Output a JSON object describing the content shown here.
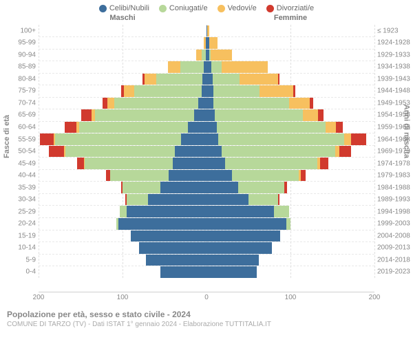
{
  "legend": [
    {
      "label": "Celibi/Nubili",
      "color": "#3d6e9c"
    },
    {
      "label": "Coniugati/e",
      "color": "#b7d89a"
    },
    {
      "label": "Vedovi/e",
      "color": "#f7c05f"
    },
    {
      "label": "Divorziati/e",
      "color": "#d13a2e"
    }
  ],
  "column_headers": {
    "left": "Maschi",
    "right": "Femmine"
  },
  "y_axis_title_left": "Fasce di età",
  "y_axis_title_right": "Anni di nascita",
  "x_axis": {
    "max": 200,
    "ticks": [
      200,
      100,
      0,
      100,
      200
    ]
  },
  "footer": {
    "title": "Popolazione per età, sesso e stato civile - 2024",
    "subtitle": "COMUNE DI TARZO (TV) - Dati ISTAT 1° gennaio 2024 - Elaborazione TUTTITALIA.IT"
  },
  "colors": {
    "grid": "#e0e0e0",
    "center_line": "#cfcfcf",
    "row_divider": "#e8e8e8",
    "axis_text": "#888888",
    "background": "#ffffff"
  },
  "rows": [
    {
      "age": "100+",
      "birth": "≤ 1923",
      "m": {
        "c": 0,
        "co": 0,
        "v": 0,
        "d": 0
      },
      "f": {
        "c": 1,
        "co": 0,
        "v": 2,
        "d": 0
      }
    },
    {
      "age": "95-99",
      "birth": "1924-1928",
      "m": {
        "c": 1,
        "co": 0,
        "v": 2,
        "d": 0
      },
      "f": {
        "c": 3,
        "co": 0,
        "v": 10,
        "d": 0
      }
    },
    {
      "age": "90-94",
      "birth": "1929-1933",
      "m": {
        "c": 1,
        "co": 5,
        "v": 6,
        "d": 0
      },
      "f": {
        "c": 3,
        "co": 2,
        "v": 25,
        "d": 0
      }
    },
    {
      "age": "85-89",
      "birth": "1934-1938",
      "m": {
        "c": 3,
        "co": 28,
        "v": 15,
        "d": 0
      },
      "f": {
        "c": 6,
        "co": 12,
        "v": 55,
        "d": 0
      }
    },
    {
      "age": "80-84",
      "birth": "1939-1943",
      "m": {
        "c": 5,
        "co": 55,
        "v": 14,
        "d": 2
      },
      "f": {
        "c": 7,
        "co": 32,
        "v": 46,
        "d": 2
      }
    },
    {
      "age": "75-79",
      "birth": "1944-1948",
      "m": {
        "c": 6,
        "co": 80,
        "v": 12,
        "d": 4
      },
      "f": {
        "c": 8,
        "co": 55,
        "v": 40,
        "d": 3
      }
    },
    {
      "age": "70-74",
      "birth": "1949-1953",
      "m": {
        "c": 10,
        "co": 100,
        "v": 8,
        "d": 6
      },
      "f": {
        "c": 8,
        "co": 90,
        "v": 25,
        "d": 4
      }
    },
    {
      "age": "65-69",
      "birth": "1954-1958",
      "m": {
        "c": 15,
        "co": 118,
        "v": 4,
        "d": 12
      },
      "f": {
        "c": 10,
        "co": 105,
        "v": 18,
        "d": 6
      }
    },
    {
      "age": "60-64",
      "birth": "1959-1963",
      "m": {
        "c": 22,
        "co": 130,
        "v": 3,
        "d": 14
      },
      "f": {
        "c": 12,
        "co": 130,
        "v": 12,
        "d": 8
      }
    },
    {
      "age": "55-59",
      "birth": "1964-1968",
      "m": {
        "c": 30,
        "co": 150,
        "v": 2,
        "d": 16
      },
      "f": {
        "c": 14,
        "co": 150,
        "v": 8,
        "d": 18
      }
    },
    {
      "age": "50-54",
      "birth": "1969-1973",
      "m": {
        "c": 38,
        "co": 130,
        "v": 2,
        "d": 18
      },
      "f": {
        "c": 18,
        "co": 135,
        "v": 5,
        "d": 14
      }
    },
    {
      "age": "45-49",
      "birth": "1974-1978",
      "m": {
        "c": 40,
        "co": 105,
        "v": 1,
        "d": 8
      },
      "f": {
        "c": 22,
        "co": 110,
        "v": 3,
        "d": 10
      }
    },
    {
      "age": "40-44",
      "birth": "1979-1983",
      "m": {
        "c": 45,
        "co": 70,
        "v": 0,
        "d": 5
      },
      "f": {
        "c": 30,
        "co": 80,
        "v": 2,
        "d": 6
      }
    },
    {
      "age": "35-39",
      "birth": "1984-1988",
      "m": {
        "c": 55,
        "co": 45,
        "v": 0,
        "d": 2
      },
      "f": {
        "c": 38,
        "co": 55,
        "v": 0,
        "d": 3
      }
    },
    {
      "age": "30-34",
      "birth": "1989-1993",
      "m": {
        "c": 70,
        "co": 25,
        "v": 0,
        "d": 2
      },
      "f": {
        "c": 50,
        "co": 35,
        "v": 0,
        "d": 2
      }
    },
    {
      "age": "25-29",
      "birth": "1994-1998",
      "m": {
        "c": 95,
        "co": 8,
        "v": 0,
        "d": 0
      },
      "f": {
        "c": 80,
        "co": 18,
        "v": 0,
        "d": 0
      }
    },
    {
      "age": "20-24",
      "birth": "1999-2003",
      "m": {
        "c": 105,
        "co": 2,
        "v": 0,
        "d": 0
      },
      "f": {
        "c": 95,
        "co": 5,
        "v": 0,
        "d": 0
      }
    },
    {
      "age": "15-19",
      "birth": "2004-2008",
      "m": {
        "c": 90,
        "co": 0,
        "v": 0,
        "d": 0
      },
      "f": {
        "c": 88,
        "co": 0,
        "v": 0,
        "d": 0
      }
    },
    {
      "age": "10-14",
      "birth": "2009-2013",
      "m": {
        "c": 80,
        "co": 0,
        "v": 0,
        "d": 0
      },
      "f": {
        "c": 78,
        "co": 0,
        "v": 0,
        "d": 0
      }
    },
    {
      "age": "5-9",
      "birth": "2014-2018",
      "m": {
        "c": 72,
        "co": 0,
        "v": 0,
        "d": 0
      },
      "f": {
        "c": 62,
        "co": 0,
        "v": 0,
        "d": 0
      }
    },
    {
      "age": "0-4",
      "birth": "2019-2023",
      "m": {
        "c": 55,
        "co": 0,
        "v": 0,
        "d": 0
      },
      "f": {
        "c": 60,
        "co": 0,
        "v": 0,
        "d": 0
      }
    }
  ]
}
